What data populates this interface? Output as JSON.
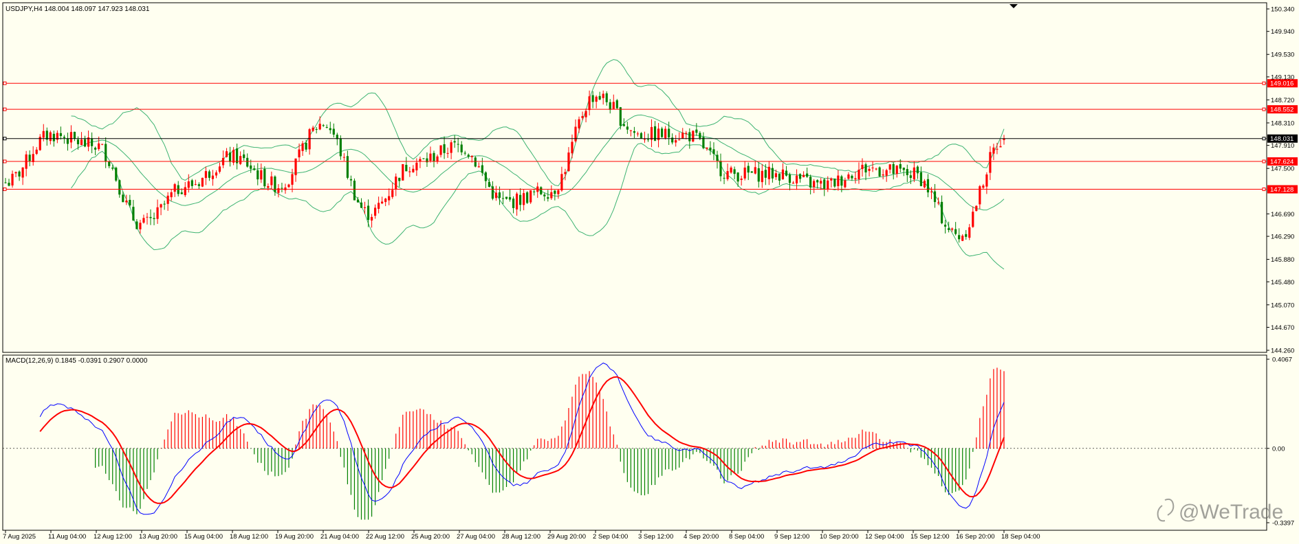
{
  "main_chart": {
    "header": "USDJPY,H4  148.004 148.097 147.923 148.031",
    "price_range": [
      144.26,
      150.34
    ],
    "price_ticks": [
      "150.340",
      "149.940",
      "149.530",
      "149.130",
      "148.720",
      "148.310",
      "147.910",
      "147.500",
      "146.690",
      "146.290",
      "145.880",
      "145.480",
      "145.070",
      "144.670",
      "144.260"
    ],
    "hlines": [
      {
        "price": 149.016,
        "label": "149.016",
        "color": "#ff0000"
      },
      {
        "price": 148.552,
        "label": "148.552",
        "color": "#ff0000"
      },
      {
        "price": 148.031,
        "label": "148.031",
        "color": "#000000"
      },
      {
        "price": 147.624,
        "label": "147.624",
        "color": "#ff0000"
      },
      {
        "price": 147.128,
        "label": "147.128",
        "color": "#ff0000"
      }
    ],
    "bull_color": "#ff0000",
    "bear_color": "#008000",
    "band_color": "#3cb371"
  },
  "macd": {
    "header": "MACD(12,26,9) 0.1845 -0.0391 0.2907 0.0000",
    "range": [
      -0.3397,
      0.4067
    ],
    "ticks": [
      "0.4067",
      "0.00",
      "-0.3397"
    ],
    "macd_color": "#0000ff",
    "signal_color": "#ff0000"
  },
  "time_labels": [
    "7 Aug 2025",
    "11 Aug 04:00",
    "12 Aug 12:00",
    "13 Aug 20:00",
    "15 Aug 04:00",
    "18 Aug 12:00",
    "19 Aug 20:00",
    "21 Aug 04:00",
    "22 Aug 12:00",
    "25 Aug 20:00",
    "27 Aug 04:00",
    "28 Aug 12:00",
    "29 Aug 20:00",
    "2 Sep 04:00",
    "3 Sep 12:00",
    "4 Sep 20:00",
    "8 Sep 04:00",
    "9 Sep 12:00",
    "10 Sep 20:00",
    "12 Sep 04:00",
    "15 Sep 12:00",
    "16 Sep 20:00",
    "18 Sep 04:00"
  ],
  "chart_data": {
    "type": "candlestick",
    "title": "USDJPY,H4",
    "ohlc_current": {
      "open": 148.004,
      "high": 148.097,
      "low": 147.923,
      "close": 148.031
    },
    "close_path": [
      {
        "x": "7 Aug 2025",
        "y": 147.25
      },
      {
        "x": "11 Aug 04:00",
        "y": 148.1
      },
      {
        "x": "12 Aug 12:00",
        "y": 147.9
      },
      {
        "x": "13 Aug 20:00",
        "y": 146.5
      },
      {
        "x": "15 Aug 04:00",
        "y": 147.2
      },
      {
        "x": "18 Aug 12:00",
        "y": 147.7
      },
      {
        "x": "19 Aug 20:00",
        "y": 147.2
      },
      {
        "x": "21 Aug 04:00",
        "y": 148.3
      },
      {
        "x": "22 Aug 12:00",
        "y": 146.7
      },
      {
        "x": "25 Aug 20:00",
        "y": 147.6
      },
      {
        "x": "27 Aug 04:00",
        "y": 147.9
      },
      {
        "x": "28 Aug 12:00",
        "y": 146.9
      },
      {
        "x": "29 Aug 20:00",
        "y": 147.1
      },
      {
        "x": "2 Sep 04:00",
        "y": 148.8
      },
      {
        "x": "3 Sep 12:00",
        "y": 148.1
      },
      {
        "x": "4 Sep 20:00",
        "y": 148.1
      },
      {
        "x": "8 Sep 04:00",
        "y": 147.4
      },
      {
        "x": "9 Sep 12:00",
        "y": 147.4
      },
      {
        "x": "10 Sep 20:00",
        "y": 147.2
      },
      {
        "x": "12 Sep 04:00",
        "y": 147.5
      },
      {
        "x": "15 Sep 12:00",
        "y": 147.4
      },
      {
        "x": "16 Sep 20:00",
        "y": 146.3
      },
      {
        "x": "18 Sep 04:00",
        "y": 148.03
      }
    ],
    "overlay": "Bollinger Bands",
    "macd": {
      "params": "12,26,9",
      "main": 0.1845,
      "signal": -0.0391,
      "hist": 0.2907
    }
  },
  "watermark": "@WeTrade"
}
